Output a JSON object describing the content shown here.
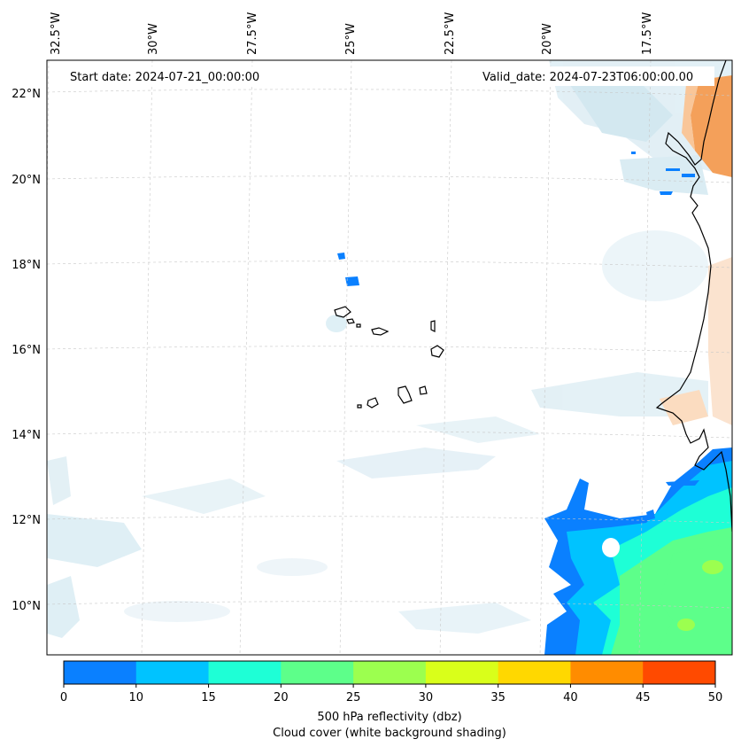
{
  "map": {
    "start_date": "Start date: 2024-07-21_00:00:00",
    "valid_date": "Valid_date: 2024-07-23T06:00:00.00",
    "lon_labels": [
      "32.5°W",
      "30°W",
      "27.5°W",
      "25°W",
      "22.5°W",
      "20°W",
      "17.5°W"
    ],
    "lat_labels": [
      "22°N",
      "20°N",
      "18°N",
      "16°N",
      "14°N",
      "12°N",
      "10°N"
    ]
  },
  "colorbar": {
    "ticks": [
      "0",
      "10",
      "15",
      "20",
      "25",
      "30",
      "35",
      "40",
      "45",
      "50"
    ],
    "colors": [
      "#0a80ff",
      "#00c3ff",
      "#1effd6",
      "#5dff8a",
      "#9cff4f",
      "#d9ff1a",
      "#ffd800",
      "#ff8c00",
      "#ff4a00"
    ],
    "label_line1": "500 hPa reflectivity (dbz)",
    "label_line2": "Cloud cover (white background shading)"
  },
  "colors": {
    "cloud_light": "#e4f1f7",
    "cloud_mid": "#cfe6ef",
    "orange_field": "#f4a05a",
    "orange_light": "#fbdcc0",
    "grid": "#c8c8c8"
  }
}
